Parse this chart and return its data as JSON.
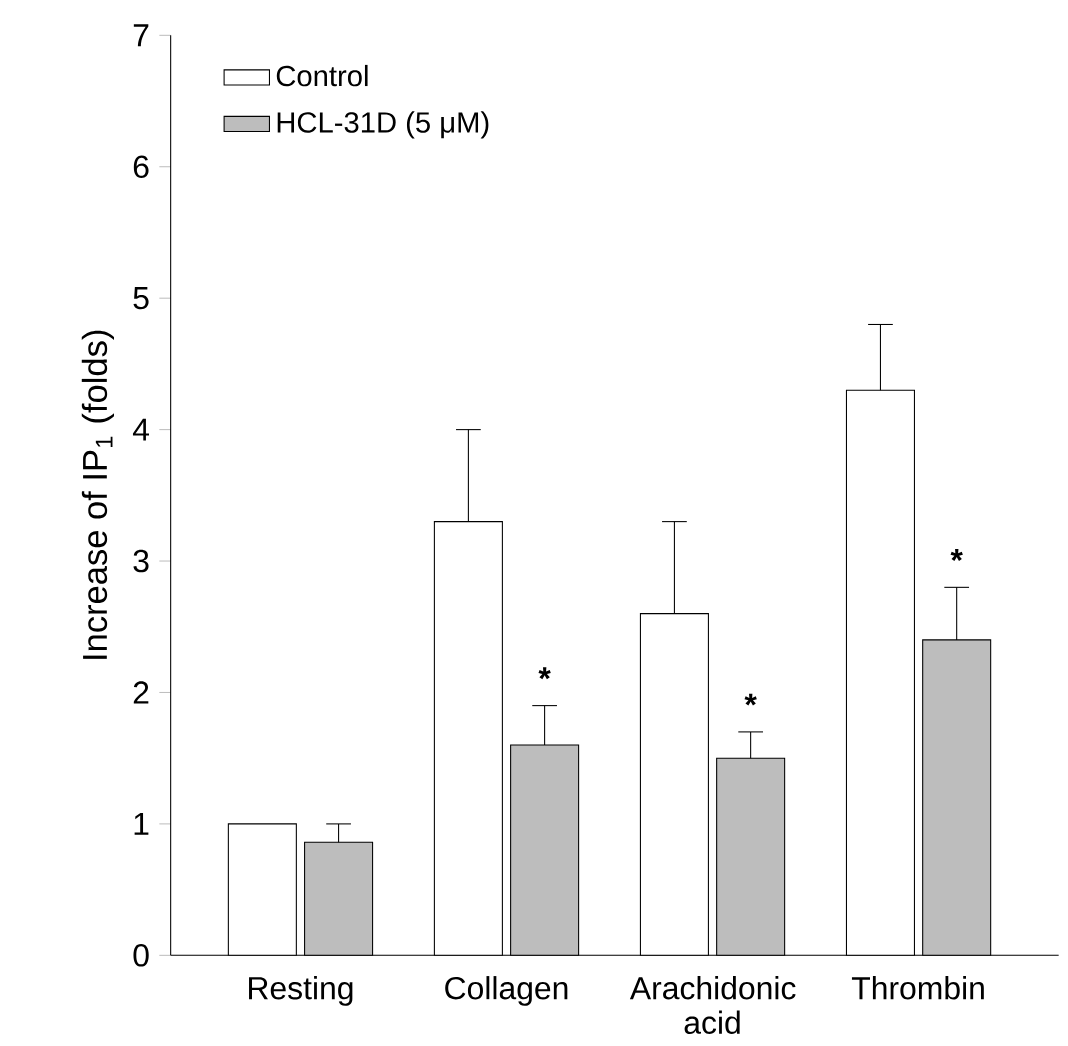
{
  "chart_data": {
    "type": "bar",
    "ylabel": "Increase of IP$_{1}$ (folds)",
    "categories": [
      "Resting",
      "Collagen",
      "Arachidonic acid",
      "Thrombin"
    ],
    "series": [
      {
        "name": "Control",
        "color": "#ffffff",
        "values": [
          1.0,
          3.3,
          2.6,
          4.3
        ],
        "errors": [
          null,
          [
            3.3,
            4.0
          ],
          [
            2.6,
            3.3
          ],
          [
            4.3,
            4.8
          ]
        ]
      },
      {
        "name": "HCL-31D (5 μM)",
        "color": "#bdbdbd",
        "values": [
          0.86,
          1.6,
          1.5,
          2.4
        ],
        "errors": [
          [
            0.86,
            1.0
          ],
          [
            1.6,
            1.9
          ],
          [
            1.5,
            1.7
          ],
          [
            2.4,
            2.8
          ]
        ]
      }
    ],
    "ylim": [
      0,
      7
    ],
    "yticks": [
      0,
      1,
      2,
      3,
      4,
      5,
      6,
      7
    ],
    "legend": "top left",
    "grid": false,
    "annotations": [
      {
        "text": "*",
        "x": "Collagen",
        "y": 2.0
      },
      {
        "text": "*",
        "x": "Arachidonic acid",
        "y": 1.8
      },
      {
        "text": "*",
        "x": "Thrombin",
        "y": 2.9
      }
    ]
  }
}
